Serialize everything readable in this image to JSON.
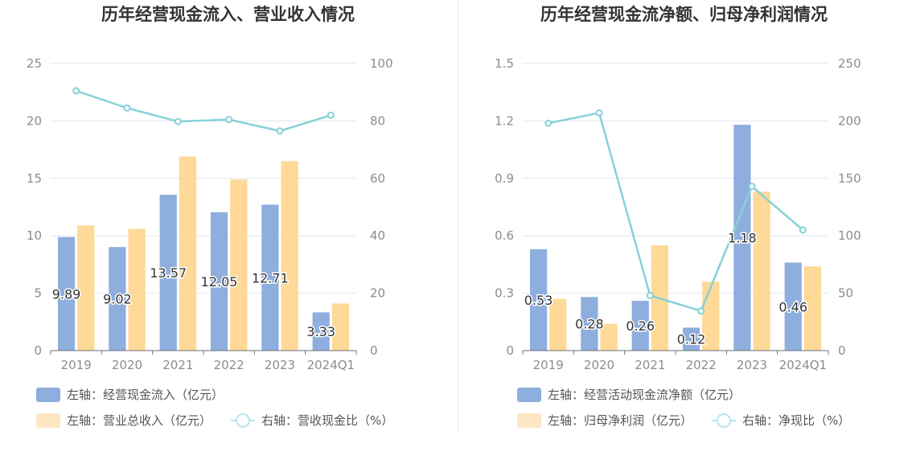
{
  "colors": {
    "bar_primary": "#8eaede",
    "bar_secondary": "#fed997",
    "bar_secondary_legend": "#fde6c2",
    "line": "#86d1d8",
    "line_legend": "#b6e6ec",
    "grid": "#e3e6ef",
    "tick": "#8c8c8c",
    "label": "#333333"
  },
  "charts": [
    {
      "title": "历年经营现金流入、营业收入情况",
      "legend": {
        "bar1": "左轴：经营现金流入（亿元）",
        "bar2": "左轴：营业总收入（亿元）",
        "line": "右轴：营收现金比（%）"
      }
    },
    {
      "title": "历年经营现金流净额、归母净利润情况",
      "legend": {
        "bar1": "左轴：经营活动现金流净额（亿元）",
        "bar2": "左轴：归母净利润（亿元）",
        "line": "右轴：净现比（%）"
      }
    }
  ],
  "chart_data": [
    {
      "type": "bar",
      "title": "历年经营现金流入、营业收入情况",
      "categories": [
        "2019",
        "2020",
        "2021",
        "2022",
        "2023",
        "2024Q1"
      ],
      "y_left": {
        "ticks": [
          "0",
          "5",
          "10",
          "15",
          "20",
          "25"
        ],
        "range": [
          0,
          25
        ]
      },
      "y_right": {
        "ticks": [
          "0",
          "20",
          "40",
          "60",
          "80",
          "100"
        ],
        "range": [
          0,
          100
        ]
      },
      "series": [
        {
          "name": "左轴：经营现金流入（亿元）",
          "axis": "left",
          "type": "bar",
          "values": [
            9.89,
            9.02,
            13.57,
            12.05,
            12.71,
            3.33
          ],
          "labels": [
            "9.89",
            "9.02",
            "13.57",
            "12.05",
            "12.71",
            "3.33"
          ]
        },
        {
          "name": "左轴：营业总收入（亿元）",
          "axis": "left",
          "type": "bar",
          "values": [
            10.9,
            10.6,
            16.9,
            14.9,
            16.5,
            4.1
          ]
        },
        {
          "name": "右轴：营收现金比（%）",
          "axis": "right",
          "type": "line",
          "values": [
            90.5,
            84.5,
            79.8,
            80.5,
            76.5,
            82.0
          ]
        }
      ],
      "grid": true,
      "legend_position": "bottom"
    },
    {
      "type": "bar",
      "title": "历年经营现金流净额、归母净利润情况",
      "categories": [
        "2019",
        "2020",
        "2021",
        "2022",
        "2023",
        "2024Q1"
      ],
      "y_left": {
        "ticks": [
          "0",
          "0.3",
          "0.6",
          "0.9",
          "1.2",
          "1.5"
        ],
        "range": [
          0,
          1.5
        ]
      },
      "y_right": {
        "ticks": [
          "0",
          "50",
          "100",
          "150",
          "200",
          "250"
        ],
        "range": [
          0,
          250
        ]
      },
      "series": [
        {
          "name": "左轴：经营活动现金流净额（亿元）",
          "axis": "left",
          "type": "bar",
          "values": [
            0.53,
            0.28,
            0.26,
            0.12,
            1.18,
            0.46
          ],
          "labels": [
            "0.53",
            "0.28",
            "0.26",
            "0.12",
            "1.18",
            "0.46"
          ]
        },
        {
          "name": "左轴：归母净利润（亿元）",
          "axis": "left",
          "type": "bar",
          "values": [
            0.27,
            0.14,
            0.55,
            0.36,
            0.83,
            0.44
          ]
        },
        {
          "name": "右轴：净现比（%）",
          "axis": "right",
          "type": "line",
          "values": [
            198,
            207,
            48,
            34.5,
            143,
            105
          ]
        }
      ],
      "grid": true,
      "legend_position": "bottom"
    }
  ]
}
